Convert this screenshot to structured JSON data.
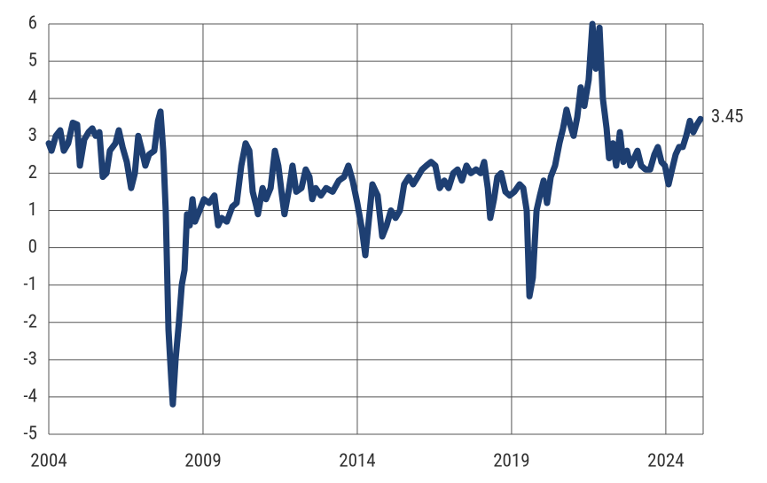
{
  "chart_data": {
    "type": "line",
    "annotation": "3.45",
    "color": "#1e3f72",
    "grid": true,
    "xlim": [
      2004,
      2025.21
    ],
    "xticks": [
      2004,
      2009,
      2014,
      2019,
      2024
    ],
    "ylim": [
      -5,
      6
    ],
    "yticks": [
      -5,
      -4,
      -3,
      -2,
      -1,
      0,
      1,
      2,
      3,
      4,
      5,
      6
    ],
    "x": [
      2004.0,
      2004.09,
      2004.23,
      2004.37,
      2004.49,
      2004.63,
      2004.78,
      2004.92,
      2005.01,
      2005.15,
      2005.29,
      2005.41,
      2005.52,
      2005.64,
      2005.75,
      2005.87,
      2005.98,
      2006.16,
      2006.27,
      2006.39,
      2006.53,
      2006.67,
      2006.79,
      2006.9,
      2007.02,
      2007.13,
      2007.25,
      2007.42,
      2007.54,
      2007.62,
      2007.71,
      2007.79,
      2007.88,
      2007.97,
      2008.02,
      2008.11,
      2008.22,
      2008.31,
      2008.4,
      2008.48,
      2008.57,
      2008.66,
      2008.74,
      2008.89,
      2009.03,
      2009.2,
      2009.37,
      2009.49,
      2009.6,
      2009.77,
      2009.95,
      2010.09,
      2010.24,
      2010.38,
      2010.5,
      2010.61,
      2010.73,
      2010.78,
      2010.93,
      2011.04,
      2011.19,
      2011.33,
      2011.44,
      2011.56,
      2011.64,
      2011.79,
      2011.9,
      2012.02,
      2012.19,
      2012.33,
      2012.45,
      2012.54,
      2012.65,
      2012.82,
      2012.99,
      2013.2,
      2013.4,
      2013.57,
      2013.71,
      2013.85,
      2014.0,
      2014.15,
      2014.26,
      2014.38,
      2014.49,
      2014.66,
      2014.81,
      2014.95,
      2015.09,
      2015.24,
      2015.38,
      2015.52,
      2015.67,
      2015.81,
      2015.96,
      2016.1,
      2016.24,
      2016.39,
      2016.53,
      2016.67,
      2016.82,
      2016.96,
      2017.11,
      2017.25,
      2017.39,
      2017.54,
      2017.68,
      2017.85,
      2018.0,
      2018.11,
      2018.23,
      2018.31,
      2018.43,
      2018.54,
      2018.66,
      2018.8,
      2018.94,
      2019.09,
      2019.26,
      2019.38,
      2019.49,
      2019.58,
      2019.69,
      2019.81,
      2019.92,
      2020.04,
      2020.15,
      2020.27,
      2020.41,
      2020.55,
      2020.67,
      2020.78,
      2020.9,
      2021.01,
      2021.13,
      2021.24,
      2021.36,
      2021.5,
      2021.62,
      2021.73,
      2021.85,
      2021.96,
      2022.08,
      2022.16,
      2022.28,
      2022.39,
      2022.51,
      2022.62,
      2022.74,
      2022.85,
      2022.97,
      2023.08,
      2023.2,
      2023.34,
      2023.49,
      2023.63,
      2023.74,
      2023.86,
      2023.97,
      2024.09,
      2024.2,
      2024.32,
      2024.43,
      2024.55,
      2024.66,
      2024.78,
      2024.89,
      2025.01,
      2025.12
    ],
    "values": [
      2.8,
      2.6,
      3.0,
      3.15,
      2.6,
      2.8,
      3.35,
      3.3,
      2.2,
      2.9,
      3.1,
      3.2,
      3.0,
      3.1,
      1.9,
      2.0,
      2.6,
      2.8,
      3.15,
      2.7,
      2.3,
      1.6,
      2.0,
      3.0,
      2.6,
      2.2,
      2.5,
      2.6,
      3.4,
      3.65,
      2.6,
      1.0,
      -2.2,
      -3.5,
      -4.2,
      -3.0,
      -2.0,
      -1.0,
      -0.6,
      0.9,
      0.6,
      1.3,
      0.7,
      1.0,
      1.3,
      1.2,
      1.4,
      0.6,
      0.8,
      0.7,
      1.1,
      1.2,
      2.2,
      2.8,
      2.6,
      1.5,
      1.1,
      0.9,
      1.6,
      1.3,
      1.6,
      2.6,
      2.2,
      1.4,
      0.9,
      1.6,
      2.2,
      1.5,
      1.6,
      2.1,
      1.9,
      1.3,
      1.6,
      1.4,
      1.6,
      1.5,
      1.8,
      1.9,
      2.2,
      1.8,
      1.2,
      0.5,
      -0.2,
      0.8,
      1.7,
      1.4,
      0.3,
      0.6,
      1.0,
      0.8,
      1.0,
      1.7,
      1.9,
      1.7,
      1.9,
      2.1,
      2.2,
      2.3,
      2.2,
      1.6,
      1.8,
      1.6,
      2.0,
      2.1,
      1.8,
      2.2,
      2.0,
      2.1,
      2.0,
      2.3,
      1.6,
      0.8,
      1.3,
      1.9,
      2.0,
      1.5,
      1.4,
      1.5,
      1.7,
      1.6,
      1.0,
      -1.3,
      -0.8,
      1.0,
      1.4,
      1.8,
      1.2,
      1.9,
      2.2,
      2.8,
      3.2,
      3.7,
      3.3,
      3.0,
      3.5,
      4.3,
      3.8,
      4.5,
      6.0,
      4.8,
      5.9,
      4.0,
      3.2,
      2.4,
      2.8,
      2.2,
      3.1,
      2.3,
      2.6,
      2.2,
      2.4,
      2.6,
      2.2,
      2.1,
      2.1,
      2.5,
      2.7,
      2.3,
      2.2,
      1.7,
      2.1,
      2.5,
      2.7,
      2.7,
      3.0,
      3.4,
      3.1,
      3.3,
      3.45
    ]
  }
}
